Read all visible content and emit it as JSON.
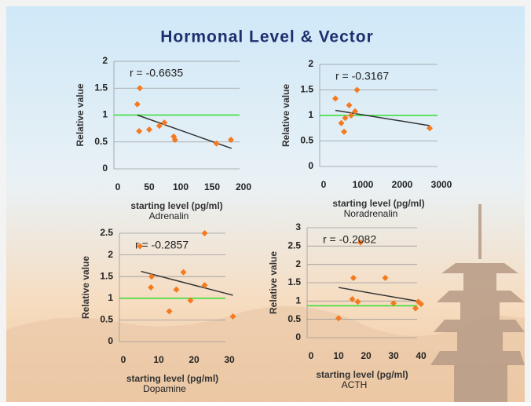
{
  "title": "Hormonal Level & Vector",
  "chart_data": [
    {
      "type": "scatter",
      "name": "Adrenalin",
      "x_label": "starting level (pg/ml)",
      "y_label": "Relative value",
      "annotation": "r = -0.6635",
      "x": [
        35,
        31,
        34,
        50,
        66,
        74,
        89,
        91,
        157,
        180
      ],
      "y": [
        1.5,
        1.2,
        0.7,
        0.73,
        0.8,
        0.86,
        0.6,
        0.54,
        0.47,
        0.54
      ],
      "color": "#f47a20",
      "xlim": [
        0,
        200
      ],
      "ylim": [
        0,
        2
      ],
      "xticks": [
        0,
        50,
        100,
        150,
        200
      ],
      "yticks": [
        0,
        0.5,
        1,
        1.5,
        2
      ],
      "grid": true,
      "trend": {
        "x": [
          31,
          181
        ],
        "y": [
          1.0,
          0.38
        ],
        "color": "#333333"
      },
      "ref_line": {
        "y": 1,
        "color": "#33dd33"
      }
    },
    {
      "type": "scatter",
      "name": "Noradrenalin",
      "x_label": "starting level (pg/ml)",
      "y_label": "Relative value",
      "annotation": "r = -0.3167",
      "x": [
        300,
        450,
        550,
        520,
        650,
        700,
        800,
        850,
        2700
      ],
      "y": [
        1.33,
        0.85,
        0.95,
        0.68,
        1.2,
        1.0,
        1.08,
        1.5,
        0.75
      ],
      "color": "#f47a20",
      "xlim": [
        0,
        3000
      ],
      "ylim": [
        0,
        2
      ],
      "xticks": [
        0,
        1000,
        2000,
        3000
      ],
      "yticks": [
        0,
        0.5,
        1,
        1.5,
        2
      ],
      "grid": true,
      "trend": {
        "x": [
          300,
          2700
        ],
        "y": [
          1.1,
          0.8
        ],
        "color": "#333333"
      },
      "ref_line": {
        "y": 1,
        "color": "#33dd33"
      }
    },
    {
      "type": "scatter",
      "name": "Dopamine",
      "x_label": "starting level (pg/ml)",
      "y_label": "Relative value",
      "annotation": "r = -0.2857",
      "x": [
        4.7,
        8,
        7.8,
        13,
        15,
        17,
        19,
        23,
        23,
        31
      ],
      "y": [
        2.2,
        1.5,
        1.25,
        0.7,
        1.2,
        1.6,
        0.95,
        2.5,
        1.3,
        0.58
      ],
      "color": "#f47a20",
      "xlim": [
        0,
        30
      ],
      "ylim": [
        0,
        2.5
      ],
      "xticks": [
        0,
        10,
        20,
        30
      ],
      "yticks": [
        0,
        0.5,
        1,
        1.5,
        2,
        2.5
      ],
      "grid": true,
      "trend": {
        "x": [
          5,
          31
        ],
        "y": [
          1.62,
          1.07
        ],
        "color": "#333333"
      },
      "ref_line": {
        "y": 1,
        "color": "#33dd33"
      }
    },
    {
      "type": "scatter",
      "name": "ACTH",
      "x_label": "starting level (pg/ml)",
      "y_label": "Relative value",
      "annotation": "r = -0.2082",
      "x": [
        10,
        15.4,
        15,
        17,
        18,
        27,
        30,
        38,
        39,
        40
      ],
      "y": [
        0.53,
        1.63,
        1.05,
        0.98,
        2.6,
        1.63,
        0.94,
        0.8,
        0.98,
        0.92
      ],
      "color": "#f47a20",
      "xlim": [
        0,
        40
      ],
      "ylim": [
        0,
        3
      ],
      "xticks": [
        0,
        10,
        20,
        30,
        40
      ],
      "yticks": [
        0,
        0.5,
        1,
        1.5,
        2,
        2.5,
        3
      ],
      "grid": true,
      "trend": {
        "x": [
          10,
          40
        ],
        "y": [
          1.37,
          0.98
        ],
        "color": "#333333"
      },
      "ref_line": {
        "y": 0.87,
        "color": "#33dd33"
      }
    }
  ]
}
